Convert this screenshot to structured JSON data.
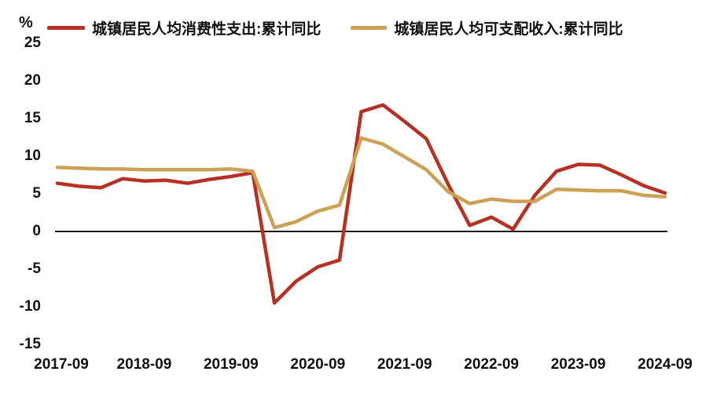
{
  "unit_label": "%",
  "colors": {
    "consumption_line": "#b63123",
    "income_line": "#cda155",
    "zero_axis": "#1a1a1a",
    "text": "#111111",
    "background": "#ffffff"
  },
  "legend": {
    "items": [
      {
        "label": "城镇居民人均消费性支出:累计同比",
        "color": "#b63123"
      },
      {
        "label": "城镇居民人均可支配收入:累计同比",
        "color": "#cda155"
      }
    ]
  },
  "chart_data": {
    "type": "line",
    "unit": "%",
    "title": "",
    "xlabel": "",
    "ylabel": "%",
    "ylim": [
      -15,
      25
    ],
    "grid": false,
    "legend_position": "top",
    "zero_line": true,
    "y_ticks": [
      25,
      20,
      15,
      10,
      5,
      0,
      -5,
      -10,
      -15
    ],
    "x_tick_labels": [
      "2017-09",
      "2018-09",
      "2019-09",
      "2020-09",
      "2021-09",
      "2022-09",
      "2023-09",
      "2024-09"
    ],
    "categories": [
      "2017-09",
      "2017-12",
      "2018-03",
      "2018-06",
      "2018-09",
      "2018-12",
      "2019-03",
      "2019-06",
      "2019-09",
      "2019-12",
      "2020-03",
      "2020-06",
      "2020-09",
      "2020-12",
      "2021-03",
      "2021-06",
      "2021-09",
      "2021-12",
      "2022-03",
      "2022-06",
      "2022-09",
      "2022-12",
      "2023-03",
      "2023-06",
      "2023-09",
      "2023-12",
      "2024-03",
      "2024-06",
      "2024-09"
    ],
    "series": [
      {
        "name": "城镇居民人均消费性支出:累计同比",
        "color": "#b63123",
        "values": [
          6.4,
          6.0,
          5.8,
          7.0,
          6.7,
          6.8,
          6.4,
          6.9,
          7.3,
          7.8,
          -9.5,
          -6.6,
          -4.7,
          -3.8,
          15.9,
          16.8,
          14.6,
          12.3,
          6.3,
          0.8,
          1.9,
          0.3,
          4.8,
          8.0,
          8.9,
          8.8,
          7.5,
          6.1,
          5.1
        ]
      },
      {
        "name": "城镇居民人均可支配收入:累计同比",
        "color": "#cda155",
        "values": [
          8.5,
          8.4,
          8.3,
          8.3,
          8.2,
          8.2,
          8.2,
          8.2,
          8.3,
          8.0,
          0.5,
          1.3,
          2.7,
          3.5,
          12.4,
          11.6,
          9.9,
          8.2,
          5.3,
          3.7,
          4.3,
          4.0,
          4.0,
          5.6,
          5.5,
          5.4,
          5.4,
          4.8,
          4.6
        ]
      }
    ]
  }
}
